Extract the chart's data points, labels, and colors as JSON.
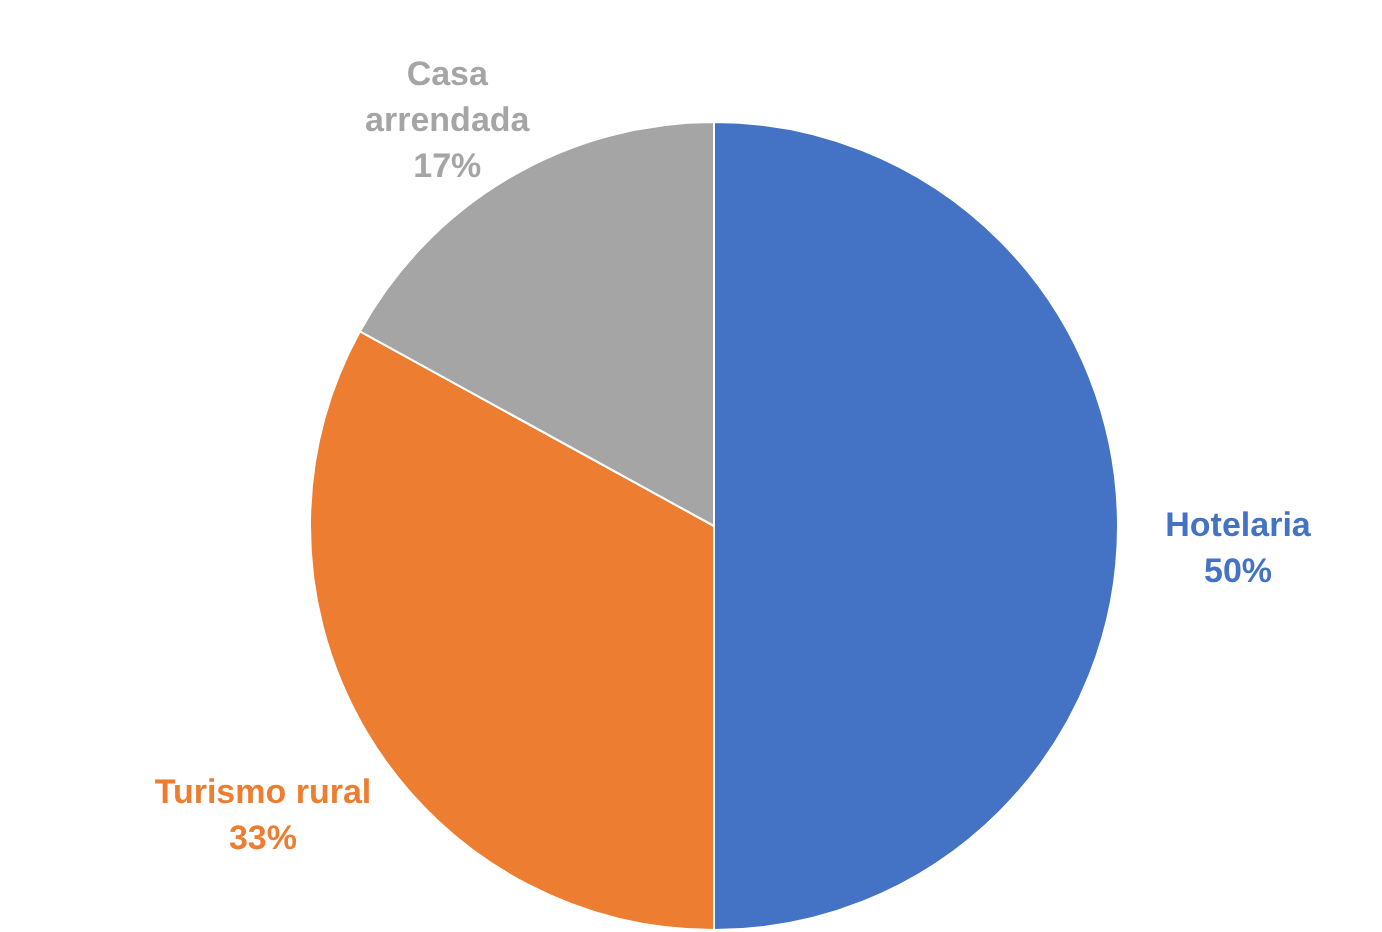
{
  "chart_data": {
    "type": "pie",
    "categories": [
      "Hotelaria",
      "Turismo rural",
      "Casa arrendada"
    ],
    "values": [
      50,
      33,
      17
    ],
    "colors": [
      "#4472c4",
      "#ed7d31",
      "#a5a5a5"
    ],
    "value_labels": [
      "50%",
      "33%",
      "17%"
    ]
  }
}
